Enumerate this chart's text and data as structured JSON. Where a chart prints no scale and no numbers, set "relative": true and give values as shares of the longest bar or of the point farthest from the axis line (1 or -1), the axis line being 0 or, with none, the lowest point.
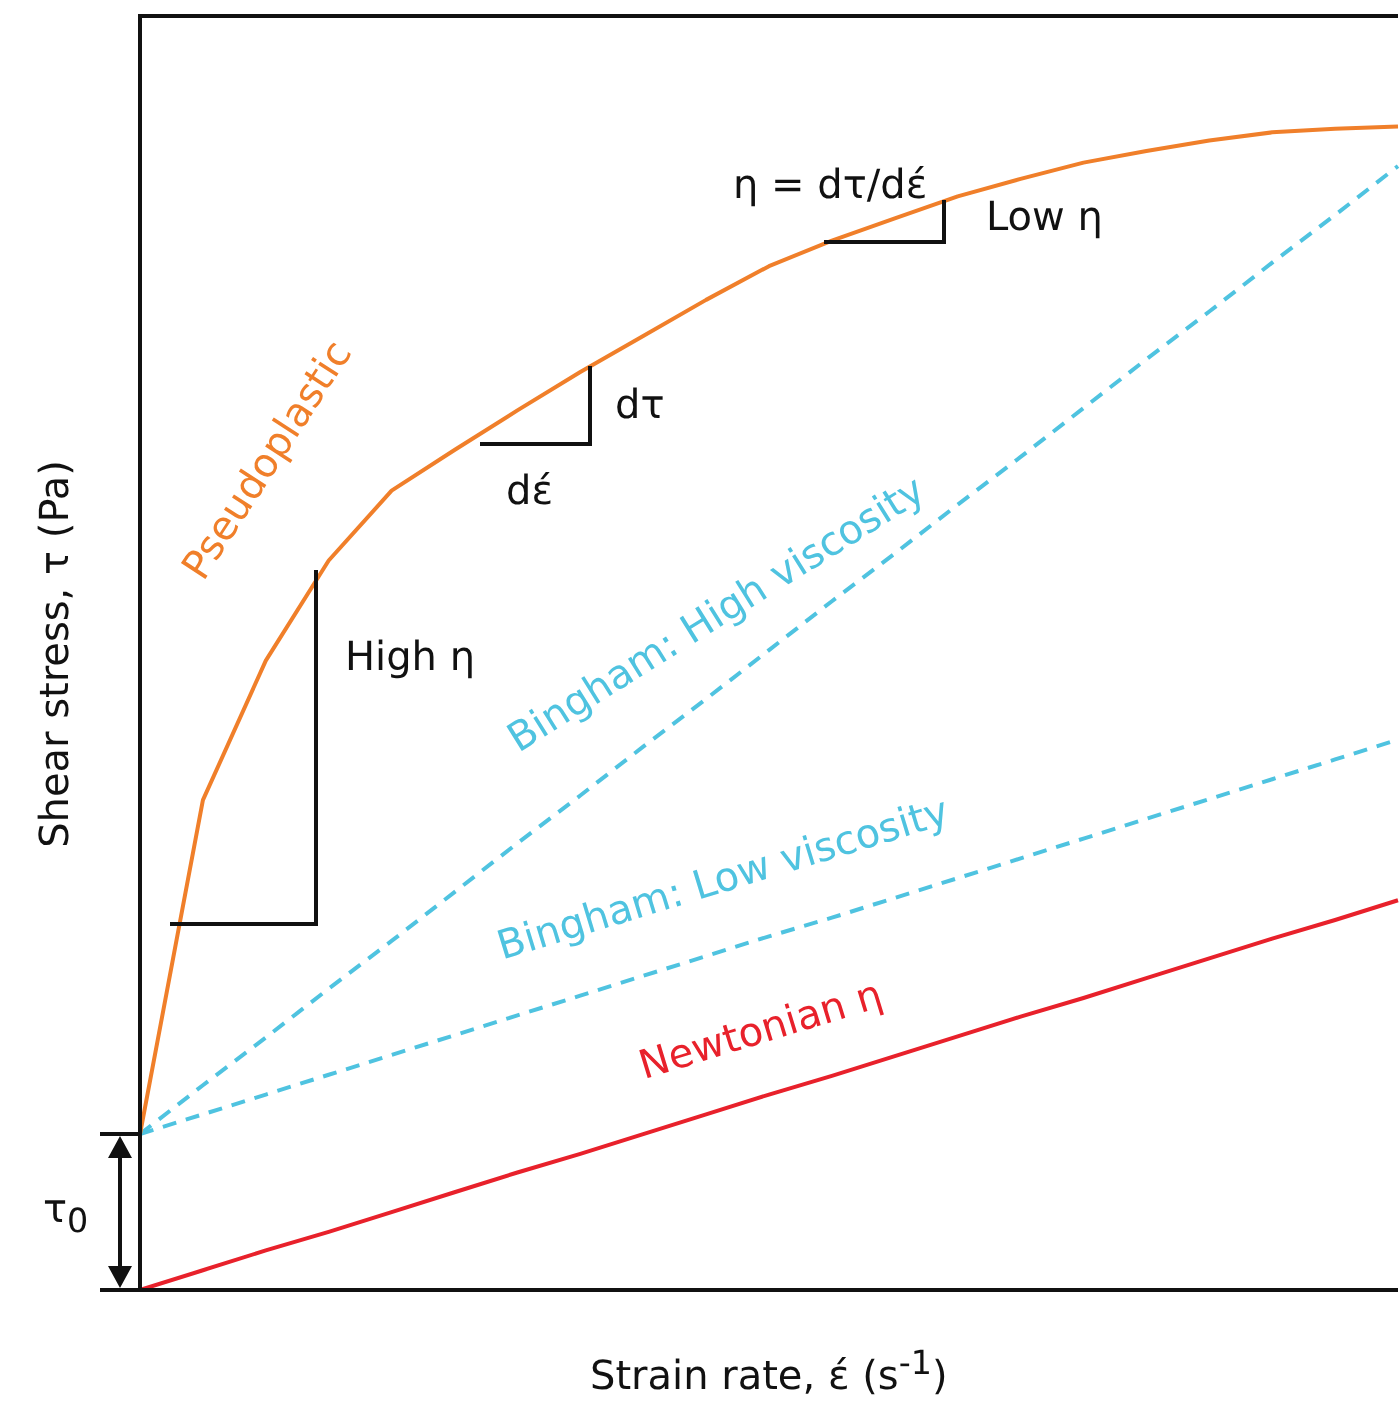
{
  "chart_data": {
    "type": "line",
    "relative": true,
    "xlabel": "Strain rate, έ (s$^{-1}$)",
    "ylabel": "Shear stress, τ (Pa)",
    "categories": [
      null,
      null,
      null,
      null,
      null,
      null,
      null,
      null,
      null,
      null,
      null,
      null,
      null,
      null,
      null,
      null,
      null,
      null,
      null,
      null,
      null
    ],
    "marker": "none",
    "legend": false,
    "series": [
      {
        "name": "Pseudoplastic",
        "color": "#f07f2a",
        "line_style": "solid",
        "values": [
          0.134,
          0.421,
          0.541,
          0.627,
          0.687,
          0.722,
          0.756,
          0.789,
          0.82,
          0.851,
          0.88,
          0.902,
          0.921,
          0.94,
          0.955,
          0.969,
          0.979,
          0.988,
          0.995,
          0.998,
          1
        ]
      },
      {
        "name": "Bingham: High viscosity",
        "color": "#4fc3e0",
        "line_style": "dashed",
        "values": [
          0.134,
          0.176,
          0.217,
          0.259,
          0.3,
          0.342,
          0.384,
          0.425,
          0.467,
          0.508,
          0.55,
          0.592,
          0.633,
          0.675,
          0.716,
          0.758,
          0.8,
          0.841,
          0.883,
          0.924,
          0.966
        ]
      },
      {
        "name": "Bingham: Low viscosity",
        "color": "#4fc3e0",
        "line_style": "dashed",
        "values": [
          0.134,
          0.151,
          0.168,
          0.185,
          0.202,
          0.219,
          0.236,
          0.253,
          0.27,
          0.287,
          0.304,
          0.32,
          0.337,
          0.354,
          0.371,
          0.388,
          0.405,
          0.422,
          0.439,
          0.456,
          0.473
        ]
      },
      {
        "name": "Newtonian η",
        "color": "#e8212b",
        "line_style": "solid",
        "values": [
          0,
          0.017,
          0.034,
          0.05,
          0.067,
          0.084,
          0.101,
          0.117,
          0.134,
          0.151,
          0.168,
          0.184,
          0.201,
          0.218,
          0.235,
          0.251,
          0.268,
          0.285,
          0.302,
          0.318,
          0.335
        ]
      }
    ],
    "annotations": [
      "η = dτ/dέ",
      "Low η",
      "High η",
      "dτ",
      "dέ",
      "τ$_{0}$"
    ]
  }
}
